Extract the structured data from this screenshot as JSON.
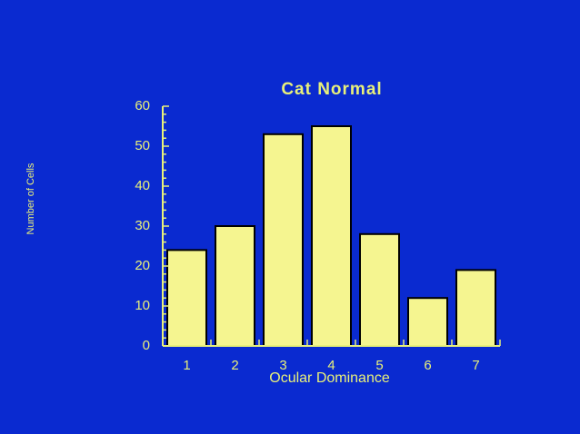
{
  "chart_data": {
    "type": "bar",
    "title": "Cat Normal",
    "xlabel": "Ocular Dominance",
    "ylabel": "Number of Cells",
    "categories": [
      "1",
      "2",
      "3",
      "4",
      "5",
      "6",
      "7"
    ],
    "values": [
      24,
      30,
      53,
      55,
      28,
      12,
      19
    ],
    "ylim": [
      0,
      60
    ],
    "yticks": [
      "0",
      "10",
      "20",
      "30",
      "40",
      "50",
      "60"
    ],
    "grid": false,
    "legend": null,
    "colors": {
      "background": "#0a2ad0",
      "bar_fill": "#f5f590",
      "bar_edge": "#000000",
      "text": "#e8f07a",
      "axis": "#e8f07a"
    }
  }
}
